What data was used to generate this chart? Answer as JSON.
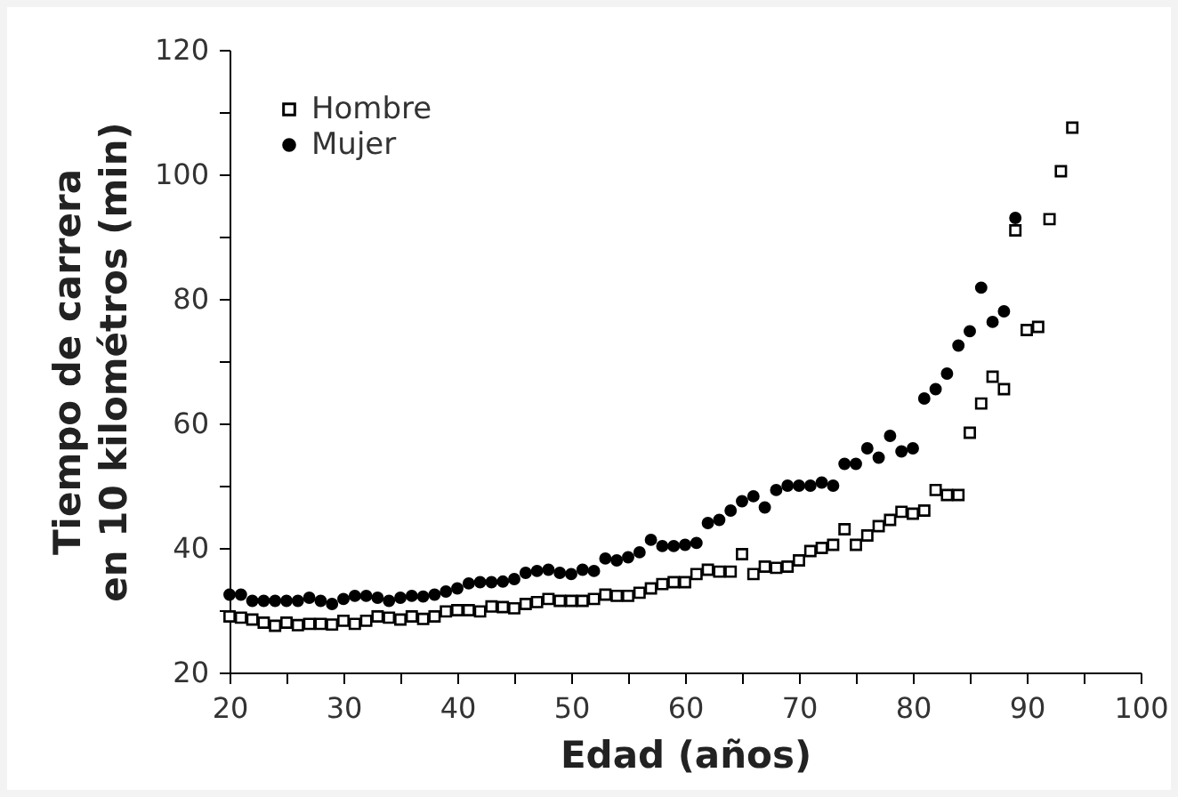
{
  "chart_data": {
    "type": "scatter",
    "xlabel": "Edad (años)",
    "ylabel": "Tiempo de carrera\nen 10 kilométros (min)",
    "x": [
      20,
      21,
      22,
      23,
      24,
      25,
      26,
      27,
      28,
      29,
      30,
      31,
      32,
      33,
      34,
      35,
      36,
      37,
      38,
      39,
      40,
      41,
      42,
      43,
      44,
      45,
      46,
      47,
      48,
      49,
      50,
      51,
      52,
      53,
      54,
      55,
      56,
      57,
      58,
      59,
      60,
      61,
      62,
      63,
      64,
      65,
      66,
      67,
      68,
      69,
      70,
      71,
      72,
      73,
      74,
      75,
      76,
      77,
      78,
      79,
      80,
      81,
      82,
      83,
      84,
      85,
      86,
      87,
      88,
      89,
      90,
      91,
      92,
      93,
      94
    ],
    "series": [
      {
        "name": "Hombre",
        "color": "#000000",
        "marker": "square",
        "values": [
          29,
          28.8,
          28.5,
          28,
          27.5,
          28,
          27.6,
          27.8,
          27.8,
          27.7,
          28.3,
          27.8,
          28.3,
          29,
          28.8,
          28.5,
          29,
          28.6,
          29,
          29.8,
          30,
          30,
          29.8,
          30.6,
          30.5,
          30.3,
          31,
          31.3,
          31.8,
          31.5,
          31.5,
          31.5,
          31.8,
          32.5,
          32.3,
          32.3,
          32.8,
          33.5,
          34.2,
          34.5,
          34.5,
          35.8,
          36.5,
          36.2,
          36.2,
          39,
          35.8,
          37,
          36.8,
          37,
          38,
          39.5,
          40,
          40.5,
          43,
          40.5,
          42,
          43.5,
          44.5,
          45.8,
          45.5,
          46,
          49.3,
          48.5,
          48.5,
          58.5,
          63.2,
          67.5,
          65.5,
          91,
          75,
          75.5,
          92.8,
          100.5,
          107.5
        ]
      },
      {
        "name": "Mujer",
        "color": "#000000",
        "marker": "circle",
        "values": [
          32.5,
          32.5,
          31.5,
          31.5,
          31.5,
          31.5,
          31.5,
          32,
          31.5,
          31,
          31.8,
          32.3,
          32.3,
          32,
          31.5,
          32,
          32.3,
          32.2,
          32.5,
          33,
          33.5,
          34.3,
          34.5,
          34.5,
          34.6,
          35,
          36,
          36.3,
          36.5,
          36,
          35.8,
          36.5,
          36.3,
          38.3,
          38,
          38.5,
          39.3,
          41.3,
          40.3,
          40.3,
          40.5,
          40.8,
          44,
          44.5,
          46,
          47.5,
          48.3,
          46.5,
          49.3,
          50,
          50,
          50,
          50.5,
          50,
          53.5,
          53.5,
          56,
          54.5,
          58,
          55.5,
          56,
          64,
          65.5,
          68,
          72.5,
          74.8,
          81.8,
          76.3,
          78,
          93,
          null,
          null,
          null,
          null,
          null
        ]
      }
    ],
    "xlim": [
      20,
      100
    ],
    "xticks": [
      20,
      {
        "value": 25,
        "label": null
      },
      30,
      {
        "value": 35,
        "label": null
      },
      40,
      {
        "value": 45,
        "label": null
      },
      50,
      {
        "value": 55,
        "label": null
      },
      60,
      {
        "value": 65,
        "label": null
      },
      70,
      {
        "value": 75,
        "label": null
      },
      80,
      {
        "value": 85,
        "label": null
      },
      90,
      {
        "value": 95,
        "label": null
      },
      100
    ],
    "ylim": [
      20,
      120
    ],
    "yticks": [
      20,
      {
        "value": 30,
        "label": null
      },
      40,
      {
        "value": 50,
        "label": null
      },
      60,
      {
        "value": 70,
        "label": null
      },
      80,
      {
        "value": 90,
        "label": null
      },
      100,
      {
        "value": 110,
        "label": null
      },
      120
    ],
    "grid": false,
    "legend": "top left"
  }
}
